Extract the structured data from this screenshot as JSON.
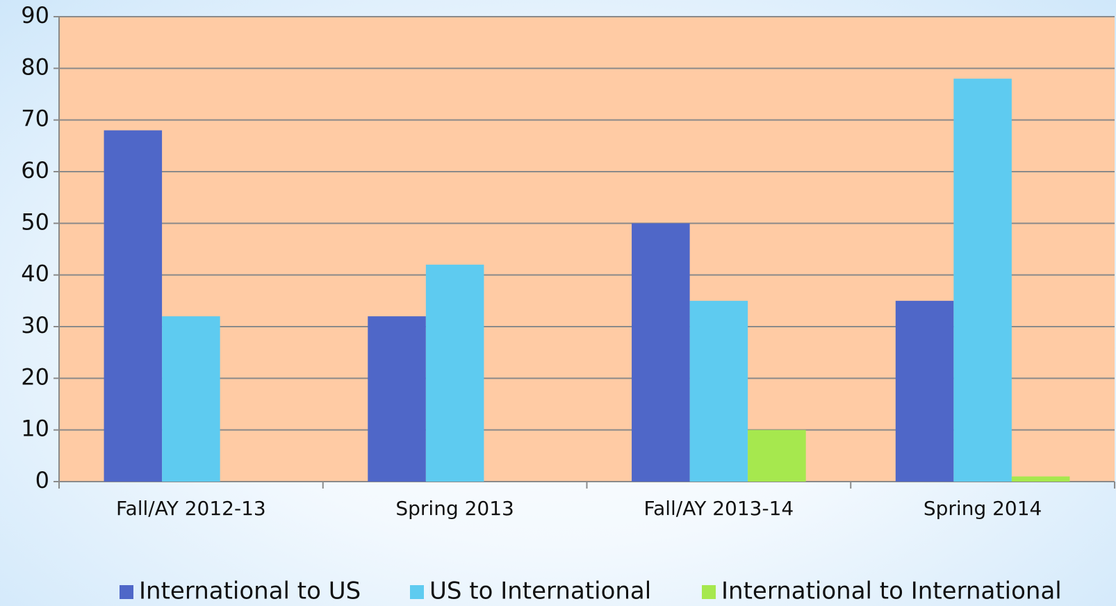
{
  "chart_data": {
    "type": "bar",
    "categories": [
      "Fall/AY 2012-13",
      "Spring 2013",
      "Fall/AY 2013-14",
      "Spring 2014"
    ],
    "series": [
      {
        "name": "International to US",
        "color": "#4f67c8",
        "values": [
          68,
          32,
          50,
          35
        ]
      },
      {
        "name": "US to International",
        "color": "#5ecbf0",
        "values": [
          32,
          42,
          35,
          78
        ]
      },
      {
        "name": "International to International",
        "color": "#a6e84e",
        "values": [
          0,
          0,
          10,
          1
        ]
      }
    ],
    "ylim": [
      0,
      90
    ],
    "yticks": [
      0,
      10,
      20,
      30,
      40,
      50,
      60,
      70,
      80,
      90
    ],
    "grid": true,
    "plot_background": "#ffcba4",
    "legend": "bottom"
  }
}
